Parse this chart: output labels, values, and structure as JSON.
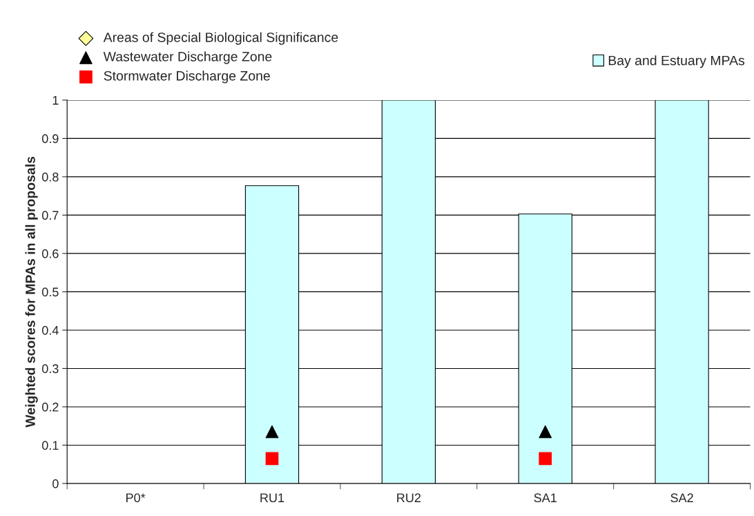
{
  "chart_data": {
    "type": "bar",
    "ylabel": "Weighted scores for MPAs in all proposals",
    "categories": [
      "P0*",
      "RU1",
      "RU2",
      "SA1",
      "SA2"
    ],
    "series": [
      {
        "name": "Bay and Estuary MPAs",
        "color": "#ccffff",
        "values": [
          null,
          0.777,
          1,
          0.703,
          1
        ]
      },
      {
        "name": "Areas of Special Biological Significance",
        "type": "scatter",
        "marker": "diamond",
        "color": "#ffff99",
        "values": [
          null,
          null,
          null,
          null,
          null
        ]
      },
      {
        "name": "Wastewater Discharge Zone",
        "type": "scatter",
        "marker": "triangle",
        "color": "#000000",
        "values": [
          null,
          0.135,
          null,
          0.135,
          null
        ]
      },
      {
        "name": "Stormwater Discharge Zone",
        "type": "scatter",
        "marker": "square",
        "color": "#ff0000",
        "values": [
          null,
          0.065,
          null,
          0.065,
          null
        ]
      }
    ],
    "ylim": [
      0,
      1
    ],
    "yticks": [
      0,
      0.1,
      0.2,
      0.3,
      0.4,
      0.5,
      0.6,
      0.7,
      0.8,
      0.9,
      1
    ],
    "grid": "y",
    "legend": "top"
  }
}
